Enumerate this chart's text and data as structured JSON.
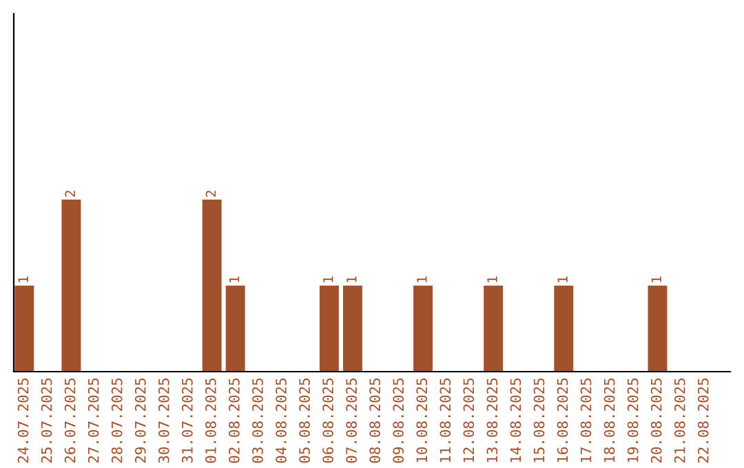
{
  "chart_data": {
    "type": "bar",
    "color": "#a0522d",
    "categories": [
      "24.07.2025",
      "25.07.2025",
      "26.07.2025",
      "27.07.2025",
      "28.07.2025",
      "29.07.2025",
      "30.07.2025",
      "31.07.2025",
      "01.08.2025",
      "02.08.2025",
      "03.08.2025",
      "04.08.2025",
      "05.08.2025",
      "06.08.2025",
      "07.08.2025",
      "08.08.2025",
      "09.08.2025",
      "10.08.2025",
      "11.08.2025",
      "12.08.2025",
      "13.08.2025",
      "14.08.2025",
      "15.08.2025",
      "16.08.2025",
      "17.08.2025",
      "18.08.2025",
      "19.08.2025",
      "20.08.2025",
      "21.08.2025",
      "22.08.2025"
    ],
    "values": [
      1,
      0,
      2,
      0,
      0,
      0,
      0,
      0,
      2,
      1,
      0,
      0,
      0,
      1,
      1,
      0,
      0,
      1,
      0,
      0,
      1,
      0,
      0,
      1,
      0,
      0,
      0,
      1,
      0,
      0
    ],
    "value_labels": [
      "1",
      null,
      "2",
      null,
      null,
      null,
      null,
      null,
      "2",
      "1",
      null,
      null,
      null,
      "1",
      "1",
      null,
      null,
      "1",
      null,
      null,
      "1",
      null,
      null,
      "1",
      null,
      null,
      null,
      "1",
      null,
      null
    ],
    "ylim": [
      0,
      4.16
    ],
    "tick_labels": "x",
    "grid": false,
    "legend": false
  }
}
